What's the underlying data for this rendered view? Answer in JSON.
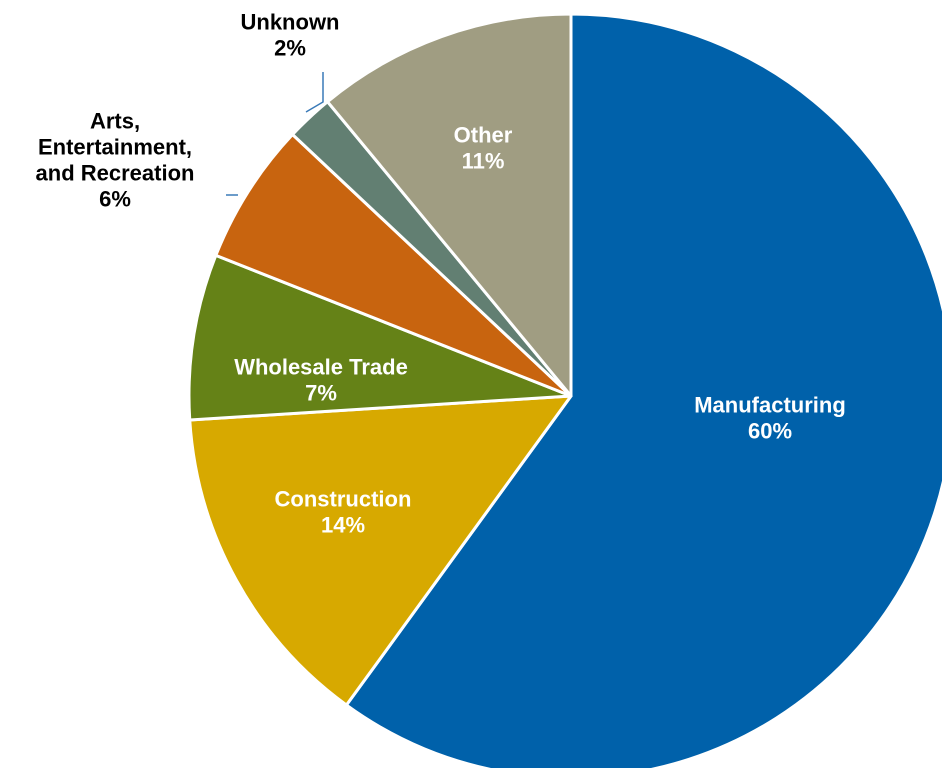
{
  "chart_data": {
    "type": "pie",
    "slices": [
      {
        "label": "Manufacturing",
        "value": 60,
        "value_label": "60%",
        "color": "#0061AA",
        "text_color": "#ffffff"
      },
      {
        "label": "Construction",
        "value": 14,
        "value_label": "14%",
        "color": "#D7A900",
        "text_color": "#ffffff"
      },
      {
        "label": "Wholesale Trade",
        "value": 7,
        "value_label": "7%",
        "color": "#658217",
        "text_color": "#ffffff"
      },
      {
        "label": "Arts, Entertainment, and Recreation",
        "value": 6,
        "value_label": "6%",
        "color": "#C8640F",
        "text_color": "#000000"
      },
      {
        "label": "Unknown",
        "value": 2,
        "value_label": "2%",
        "color": "#627F72",
        "text_color": "#000000"
      },
      {
        "label": "Other",
        "value": 11,
        "value_label": "11%",
        "color": "#A09D82",
        "text_color": "#ffffff"
      }
    ],
    "start": "top",
    "direction": "clockwise"
  }
}
